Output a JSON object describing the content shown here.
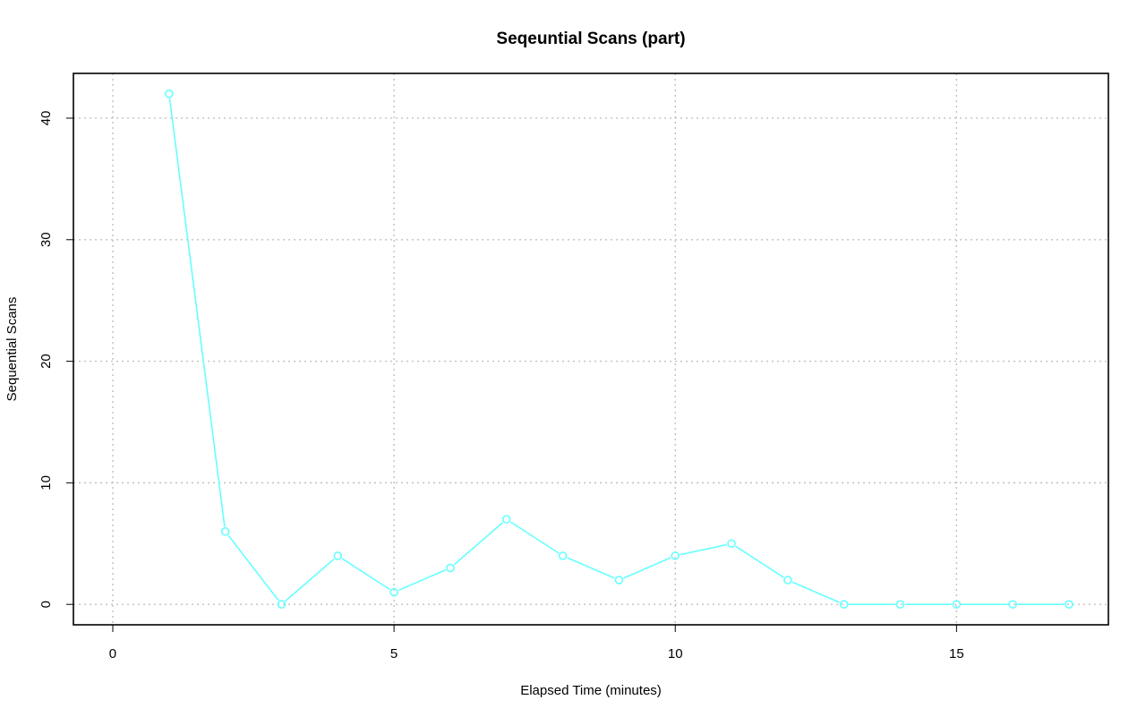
{
  "chart_data": {
    "type": "line",
    "title": "Seqeuntial Scans (part)",
    "xlabel": "Elapsed Time (minutes)",
    "ylabel": "Sequential Scans",
    "xlim": [
      -0.7,
      17.7
    ],
    "ylim": [
      -1.68,
      43.68
    ],
    "x_ticks": [
      0,
      5,
      10,
      15
    ],
    "y_ticks": [
      0,
      10,
      20,
      30,
      40
    ],
    "grid": true,
    "series": [
      {
        "color": "#66ffff",
        "marker": "open-circle",
        "x": [
          1,
          2,
          3,
          4,
          5,
          6,
          7,
          8,
          9,
          10,
          11,
          12,
          13,
          14,
          15,
          16,
          17
        ],
        "y": [
          42,
          6,
          0,
          4,
          1,
          3,
          7,
          4,
          2,
          4,
          5,
          2,
          0,
          0,
          0,
          0,
          0
        ]
      }
    ]
  }
}
